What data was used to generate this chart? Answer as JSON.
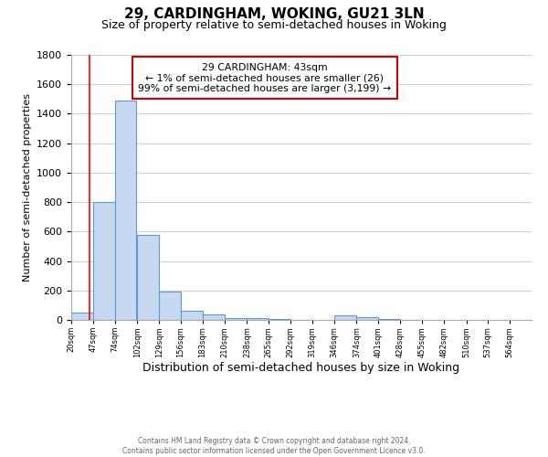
{
  "title": "29, CARDINGHAM, WOKING, GU21 3LN",
  "subtitle": "Size of property relative to semi-detached houses in Woking",
  "xlabel": "Distribution of semi-detached houses by size in Woking",
  "ylabel": "Number of semi-detached properties",
  "bin_labels": [
    "20sqm",
    "47sqm",
    "74sqm",
    "102sqm",
    "129sqm",
    "156sqm",
    "183sqm",
    "210sqm",
    "238sqm",
    "265sqm",
    "292sqm",
    "319sqm",
    "346sqm",
    "374sqm",
    "401sqm",
    "428sqm",
    "455sqm",
    "482sqm",
    "510sqm",
    "537sqm",
    "564sqm"
  ],
  "bar_heights": [
    50,
    800,
    1490,
    580,
    190,
    60,
    40,
    15,
    10,
    5,
    2,
    0,
    30,
    20,
    5,
    2,
    0,
    0,
    0,
    0,
    0
  ],
  "bar_color": "#c6d9f1",
  "bar_edge_color": "#5b9bd5",
  "ylim": [
    0,
    1800
  ],
  "yticks": [
    0,
    200,
    400,
    600,
    800,
    1000,
    1200,
    1400,
    1600,
    1800
  ],
  "red_line_x": 43,
  "annotation_title": "29 CARDINGHAM: 43sqm",
  "annotation_line1": "← 1% of semi-detached houses are smaller (26)",
  "annotation_line2": "99% of semi-detached houses are larger (3,199) →",
  "annotation_box_color": "#ffffff",
  "annotation_box_edge_color": "#cc0000",
  "footer_line1": "Contains HM Land Registry data © Crown copyright and database right 2024.",
  "footer_line2": "Contains public sector information licensed under the Open Government Licence v3.0.",
  "background_color": "#ffffff",
  "grid_color": "#d0d0d0",
  "title_fontsize": 11,
  "subtitle_fontsize": 9,
  "ylabel_fontsize": 8,
  "xlabel_fontsize": 9
}
